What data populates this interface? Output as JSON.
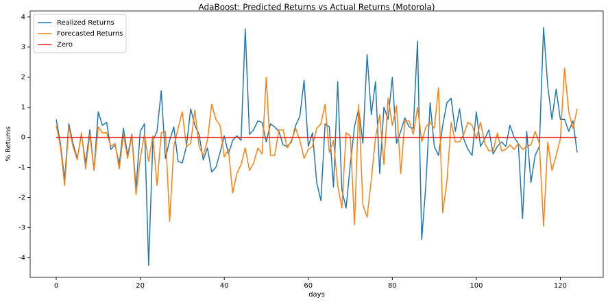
{
  "chart_data": {
    "type": "line",
    "title": "AdaBoost: Predicted Returns vs Actual Returns (Motorola)",
    "x_label": "days",
    "y_label": "% Returns",
    "x": [
      0,
      1,
      2,
      3,
      4,
      5,
      6,
      7,
      8,
      9,
      10,
      11,
      12,
      13,
      14,
      15,
      16,
      17,
      18,
      19,
      20,
      21,
      22,
      23,
      24,
      25,
      26,
      27,
      28,
      29,
      30,
      31,
      32,
      33,
      34,
      35,
      36,
      37,
      38,
      39,
      40,
      41,
      42,
      43,
      44,
      45,
      46,
      47,
      48,
      49,
      50,
      51,
      52,
      53,
      54,
      55,
      56,
      57,
      58,
      59,
      60,
      61,
      62,
      63,
      64,
      65,
      66,
      67,
      68,
      69,
      70,
      71,
      72,
      73,
      74,
      75,
      76,
      77,
      78,
      79,
      80,
      81,
      82,
      83,
      84,
      85,
      86,
      87,
      88,
      89,
      90,
      91,
      92,
      93,
      94,
      95,
      96,
      97,
      98,
      99,
      100,
      101,
      102,
      103,
      104,
      105,
      106,
      107,
      108,
      109,
      110,
      111,
      112,
      113,
      114,
      115,
      116,
      117,
      118,
      119,
      120,
      121,
      122,
      123,
      124
    ],
    "series": [
      {
        "name": "Realized Returns",
        "color": "#1f77b4",
        "values": [
          0.6,
          -0.2,
          -1.4,
          0.45,
          -0.2,
          -0.7,
          0.1,
          -0.85,
          0.25,
          -1.1,
          0.85,
          0.4,
          0.5,
          -0.4,
          -0.25,
          -0.9,
          0.3,
          -0.6,
          0.1,
          -1.7,
          0.2,
          0.45,
          -4.25,
          -0.1,
          0.2,
          1.55,
          -0.7,
          -0.1,
          0.35,
          -0.8,
          -0.85,
          -0.3,
          0.95,
          0.4,
          0.1,
          -0.75,
          -0.35,
          -1.15,
          -1.0,
          -0.5,
          0.05,
          -0.55,
          -0.1,
          0.05,
          -0.1,
          3.6,
          0.1,
          0.25,
          0.55,
          0.5,
          -0.15,
          0.45,
          0.35,
          0.2,
          -0.25,
          -0.3,
          -0.15,
          0.4,
          0.7,
          1.9,
          -0.3,
          0.15,
          -1.5,
          -2.1,
          0.45,
          0.35,
          -1.65,
          1.85,
          -1.75,
          -2.35,
          -0.9,
          0.35,
          0.95,
          -0.2,
          2.75,
          0.75,
          1.85,
          -1.2,
          1.0,
          0.6,
          2.0,
          -0.2,
          0.2,
          0.65,
          0.35,
          0.3,
          3.2,
          -3.4,
          -1.55,
          1.15,
          -0.3,
          -0.6,
          0.4,
          1.15,
          1.3,
          0.2,
          0.95,
          -0.05,
          -0.4,
          -0.6,
          0.85,
          -0.3,
          -0.05,
          0.25,
          -0.55,
          -0.3,
          -0.15,
          -0.3,
          0.4,
          0.0,
          -0.2,
          -2.7,
          0.2,
          -1.5,
          -0.6,
          -0.3,
          3.65,
          1.7,
          0.6,
          1.6,
          0.6,
          0.6,
          0.2,
          0.55,
          -0.5
        ]
      },
      {
        "name": "Forecasted Returns",
        "color": "#ff7f0e",
        "values": [
          0.4,
          -0.3,
          -1.6,
          0.35,
          -0.3,
          -0.75,
          0.15,
          -1.05,
          0.1,
          -1.1,
          0.35,
          0.15,
          0.15,
          -0.3,
          -0.2,
          -1.05,
          0.1,
          -0.7,
          0.05,
          -1.9,
          -0.7,
          0.1,
          -0.8,
          0.05,
          -1.6,
          0.15,
          0.2,
          -2.8,
          -0.3,
          0.3,
          0.85,
          -0.3,
          -0.2,
          0.9,
          -0.3,
          -0.6,
          -0.1,
          1.1,
          0.6,
          0.4,
          -0.65,
          -0.4,
          -1.85,
          -1.2,
          -0.9,
          -0.35,
          -1.1,
          -0.85,
          -0.35,
          -0.55,
          2.0,
          -0.6,
          -0.6,
          0.25,
          0.25,
          -0.35,
          -0.1,
          0.3,
          -0.1,
          -0.7,
          -0.4,
          -0.3,
          0.3,
          0.45,
          1.1,
          -0.5,
          -0.1,
          -1.6,
          -2.35,
          0.15,
          0.05,
          -2.9,
          1.1,
          -2.25,
          -2.65,
          -1.4,
          0.0,
          0.75,
          -0.9,
          1.3,
          0.4,
          1.05,
          -1.2,
          0.55,
          0.55,
          0.1,
          1.0,
          -0.15,
          0.35,
          0.5,
          0.3,
          1.65,
          -2.5,
          -1.45,
          0.5,
          -0.15,
          -0.15,
          0.1,
          0.5,
          0.4,
          -0.05,
          0.5,
          -0.2,
          -0.45,
          -0.45,
          0.15,
          -0.45,
          -0.4,
          -0.25,
          -0.4,
          -0.2,
          -0.4,
          -0.3,
          -0.25,
          0.2,
          -0.2,
          -2.95,
          -0.15,
          -1.1,
          -0.6,
          -0.05,
          2.3,
          0.85,
          0.3,
          0.95
        ]
      },
      {
        "name": "Zero",
        "color": "#e8261c",
        "x": [
          0,
          124
        ],
        "values": [
          0,
          0
        ]
      }
    ],
    "xlim": [
      -6.2,
      130.2
    ],
    "ylim": [
      -4.65,
      4.2
    ],
    "xticks": [
      0,
      20,
      40,
      60,
      80,
      100,
      120
    ],
    "yticks": [
      -4,
      -3,
      -2,
      -1,
      0,
      1,
      2,
      3,
      4
    ],
    "legend": "upper left"
  }
}
